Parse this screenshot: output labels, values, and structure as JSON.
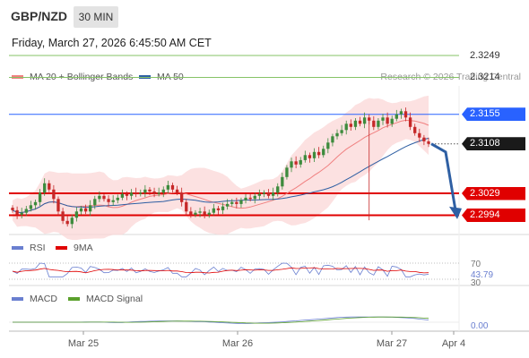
{
  "header": {
    "pair": "GBP/NZD",
    "timeframe": "30 MIN",
    "datetime": "Friday, March 27, 2026 6:45:50 AM CET"
  },
  "legend": {
    "ma20": "MA 20 + Bollinger Bands",
    "ma50": "MA 50",
    "credit": "Research © 2026 Trading Central"
  },
  "colors": {
    "ma20": "#f08080",
    "ma50": "#2e5fa3",
    "support": "#e00000",
    "pivot": "#2962ff",
    "target": "#86c366",
    "arrow": "#2e5fa3",
    "bull": "#3d8b3d",
    "bear": "#c62828",
    "rsi": "#6a7fd0",
    "rsi_ma": "#e00000",
    "macd": "#6a7fd0",
    "macd_signal": "#5aa02c"
  },
  "levels": [
    {
      "value": 2.3249,
      "label": "2.3249",
      "kind": "target"
    },
    {
      "value": 2.3214,
      "label": "2.3214",
      "kind": "target"
    },
    {
      "value": 2.3155,
      "label": "2.3155",
      "kind": "pivot"
    },
    {
      "value": 2.3108,
      "label": "2.3108",
      "kind": "last"
    },
    {
      "value": 2.3029,
      "label": "2.3029",
      "kind": "support"
    },
    {
      "value": 2.2994,
      "label": "2.2994",
      "kind": "support"
    }
  ],
  "rsi_panel": {
    "legend": [
      "RSI",
      "9MA"
    ],
    "levels": [
      "70",
      "30"
    ],
    "value": "43.79"
  },
  "macd_panel": {
    "legend": [
      "MACD",
      "MACD Signal"
    ],
    "value": "0.00"
  },
  "x_axis": {
    "ticks": [
      "Mar 25",
      "Mar 26",
      "Mar 27",
      "Apr 4"
    ]
  },
  "chart_data": {
    "type": "candlestick",
    "symbol": "GBP/NZD",
    "interval": "30 MIN",
    "ylim": [
      2.2955,
      2.3275
    ],
    "close_series": [
      2.3002,
      2.2995,
      2.2998,
      2.3004,
      2.301,
      2.3015,
      2.303,
      2.3045,
      2.3035,
      2.302,
      2.3,
      2.2985,
      2.298,
      2.299,
      2.3,
      2.3005,
      2.3,
      2.301,
      2.302,
      2.3025,
      2.302,
      2.3015,
      2.3018,
      2.3022,
      2.3028,
      2.3025,
      2.303,
      2.3028,
      2.303,
      2.3035,
      2.3032,
      2.3028,
      2.303,
      2.3035,
      2.3042,
      2.3035,
      2.303,
      2.3015,
      2.3,
      2.2995,
      2.2998,
      2.3,
      2.2995,
      2.2998,
      2.3005,
      2.3002,
      2.3008,
      2.3012,
      2.3015,
      2.3012,
      2.3018,
      2.3022,
      2.302,
      2.3025,
      2.3028,
      2.303,
      2.3025,
      2.303,
      2.304,
      2.3055,
      2.307,
      2.308,
      2.3075,
      2.3082,
      2.309,
      2.3085,
      2.3095,
      2.309,
      2.31,
      2.311,
      2.312,
      2.3125,
      2.313,
      2.314,
      2.3135,
      2.3145,
      2.314,
      2.315,
      2.3145,
      2.3135,
      2.3145,
      2.315,
      2.314,
      2.3148,
      2.3155,
      2.316,
      2.315,
      2.3135,
      2.3125,
      2.3118,
      2.3112,
      2.3108
    ],
    "last": 2.3108
  }
}
